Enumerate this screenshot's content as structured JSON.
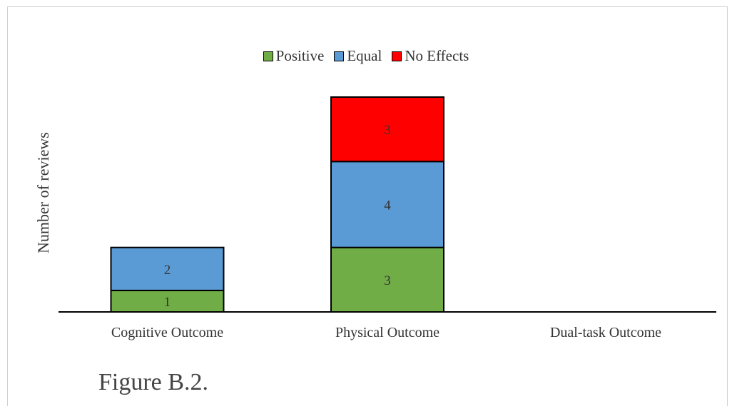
{
  "chart_data": {
    "type": "bar",
    "stacked": true,
    "categories": [
      "Cognitive Outcome",
      "Physical Outcome",
      "Dual-task Outcome"
    ],
    "series": [
      {
        "name": "Positive",
        "color": "#70ad47",
        "values": [
          1,
          3,
          0
        ]
      },
      {
        "name": "Equal",
        "color": "#5b9bd5",
        "values": [
          2,
          4,
          0
        ]
      },
      {
        "name": "No Effects",
        "color": "#ff0000",
        "values": [
          0,
          3,
          0
        ]
      }
    ],
    "ylabel": "Number of reviews",
    "xlabel": "",
    "ylim": [
      0,
      10
    ],
    "grid": false,
    "legend_position": "top-center"
  },
  "caption": "Figure B.2."
}
